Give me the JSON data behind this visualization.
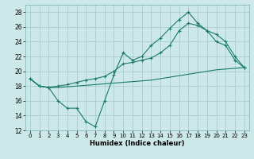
{
  "xlabel": "Humidex (Indice chaleur)",
  "bg_color": "#cce8e8",
  "grid_color": "#aacccc",
  "line_color": "#1a7a6e",
  "xlim": [
    -0.5,
    23.5
  ],
  "ylim": [
    12,
    29
  ],
  "xticks": [
    0,
    1,
    2,
    3,
    4,
    5,
    6,
    7,
    8,
    9,
    10,
    11,
    12,
    13,
    14,
    15,
    16,
    17,
    18,
    19,
    20,
    21,
    22,
    23
  ],
  "yticks": [
    12,
    14,
    16,
    18,
    20,
    22,
    24,
    26,
    28
  ],
  "line1_x": [
    0,
    1,
    2,
    3,
    4,
    5,
    6,
    7,
    8,
    9,
    10,
    11,
    12,
    13,
    14,
    15,
    16,
    17,
    18,
    19,
    20,
    21,
    22,
    23
  ],
  "line1_y": [
    19.0,
    18.0,
    17.8,
    16.0,
    15.0,
    15.0,
    13.2,
    12.5,
    16.0,
    19.5,
    22.5,
    21.5,
    22.0,
    23.5,
    24.5,
    25.8,
    27.0,
    28.0,
    26.5,
    25.5,
    24.0,
    23.5,
    21.5,
    20.5
  ],
  "line2_x": [
    0,
    1,
    2,
    3,
    4,
    5,
    6,
    7,
    8,
    9,
    10,
    11,
    12,
    13,
    14,
    15,
    16,
    17,
    18,
    19,
    20,
    21,
    22,
    23
  ],
  "line2_y": [
    19.0,
    18.0,
    17.8,
    18.0,
    18.2,
    18.5,
    18.8,
    19.0,
    19.3,
    20.0,
    21.0,
    21.2,
    21.5,
    21.8,
    22.5,
    23.5,
    25.5,
    26.5,
    26.2,
    25.5,
    25.0,
    24.0,
    22.0,
    20.5
  ],
  "line3_x": [
    0,
    1,
    2,
    3,
    4,
    5,
    6,
    7,
    8,
    9,
    10,
    11,
    12,
    13,
    14,
    15,
    16,
    17,
    18,
    19,
    20,
    21,
    22,
    23
  ],
  "line3_y": [
    19.0,
    18.0,
    17.8,
    17.8,
    17.9,
    18.0,
    18.1,
    18.2,
    18.3,
    18.4,
    18.5,
    18.6,
    18.7,
    18.8,
    19.0,
    19.2,
    19.4,
    19.6,
    19.8,
    20.0,
    20.2,
    20.3,
    20.4,
    20.5
  ]
}
